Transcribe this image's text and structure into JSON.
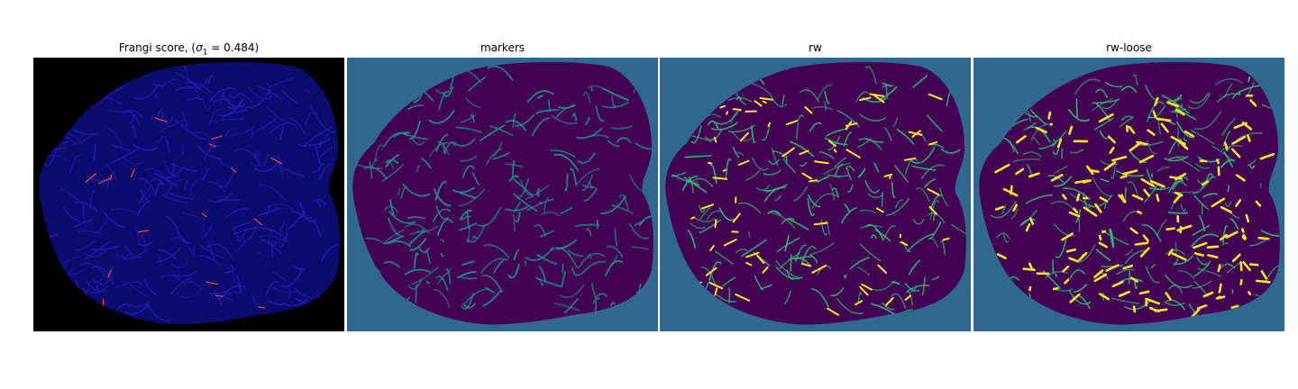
{
  "figure": {
    "panels": [
      {
        "title_pre": "Frangi score, (",
        "title_sigma": "σ",
        "title_sub": "1",
        "title_post": " = 0.484)",
        "background": "#000000",
        "tissue": "#0c0c6e",
        "vessel": "#1c1cb0",
        "highlight": "#e64a2e",
        "colormap": "gnuplot2"
      },
      {
        "title": "markers",
        "background": "#31688e",
        "tissue": "#440154",
        "vessel": "#21918c",
        "colormap": "viridis"
      },
      {
        "title": "rw",
        "background": "#31688e",
        "tissue": "#440154",
        "vessel": "#35b779",
        "highlight": "#fde725",
        "colormap": "viridis"
      },
      {
        "title": "rw-loose",
        "background": "#31688e",
        "tissue": "#440154",
        "vessel": "#35b779",
        "highlight": "#fde725",
        "colormap": "viridis"
      }
    ]
  }
}
